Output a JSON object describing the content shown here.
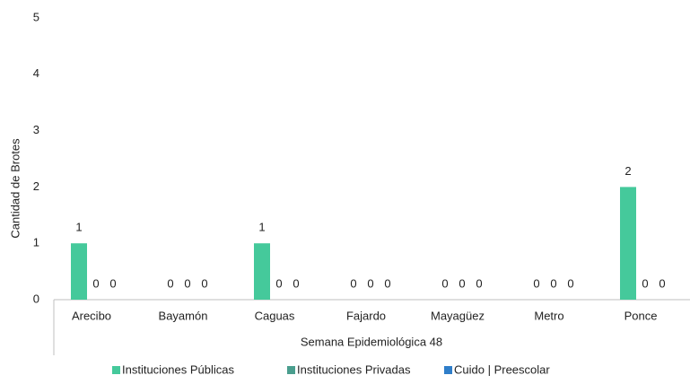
{
  "chart_data": {
    "type": "bar",
    "y_label": "Cantidad de Brotes",
    "x_label": "Semana Epidemiológica 48",
    "categories": [
      "Arecibo",
      "Bayamón",
      "Caguas",
      "Fajardo",
      "Mayagüez",
      "Metro",
      "Ponce"
    ],
    "series": [
      {
        "name": "Instituciones Públicas",
        "color": "#45c99b",
        "values": [
          1,
          0,
          1,
          0,
          0,
          0,
          2
        ]
      },
      {
        "name": "Instituciones Privadas",
        "color": "#4a9e8e",
        "values": [
          0,
          0,
          0,
          0,
          0,
          0,
          0
        ]
      },
      {
        "name": "Cuido | Preescolar",
        "color": "#2f7ec9",
        "values": [
          0,
          0,
          0,
          0,
          0,
          0,
          0
        ]
      }
    ],
    "ylim": [
      0,
      5
    ],
    "yticks": [
      0,
      1,
      2,
      3,
      4,
      5
    ],
    "grid": false,
    "legend": "bottom"
  }
}
